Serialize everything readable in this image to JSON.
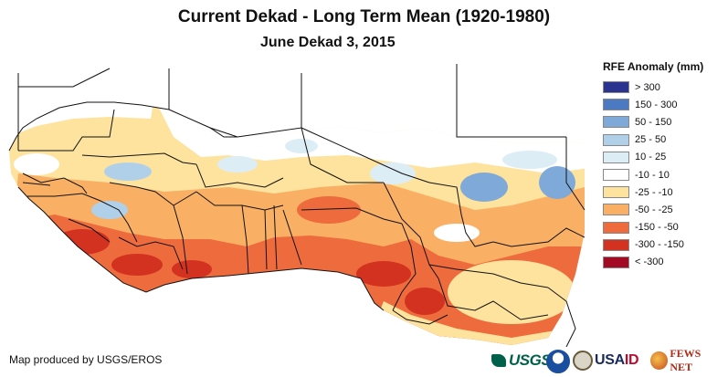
{
  "title": "Current Dekad - Long Term Mean (1920-1980)",
  "subtitle": "June Dekad 3, 2015",
  "legend": {
    "title": "RFE Anomaly (mm)",
    "items": [
      {
        "label": "> 300",
        "color": "#2b3390"
      },
      {
        "label": "150 - 300",
        "color": "#4b79c2"
      },
      {
        "label": "50 - 150",
        "color": "#7fa9d8"
      },
      {
        "label": "25 - 50",
        "color": "#b0d0ea"
      },
      {
        "label": "10 - 25",
        "color": "#dcedf6"
      },
      {
        "label": "-10 - 10",
        "color": "#ffffff"
      },
      {
        "label": "-25 - -10",
        "color": "#fde39e"
      },
      {
        "label": "-50 - -25",
        "color": "#f9b064"
      },
      {
        "label": "-150 - -50",
        "color": "#ee6b3e"
      },
      {
        "label": "-300 - -150",
        "color": "#d2321f"
      },
      {
        "label": "< -300",
        "color": "#a30b25"
      }
    ]
  },
  "credit": "Map produced by USGS/EROS",
  "logos": {
    "usgs": "USGS",
    "usaid_a": "USA",
    "usaid_b": "ID",
    "fews": "FEWS NET",
    "icons": [
      "usgs-logo",
      "noaa-logo",
      "usda-seal-logo",
      "usaid-logo",
      "fews-net-logo"
    ]
  }
}
